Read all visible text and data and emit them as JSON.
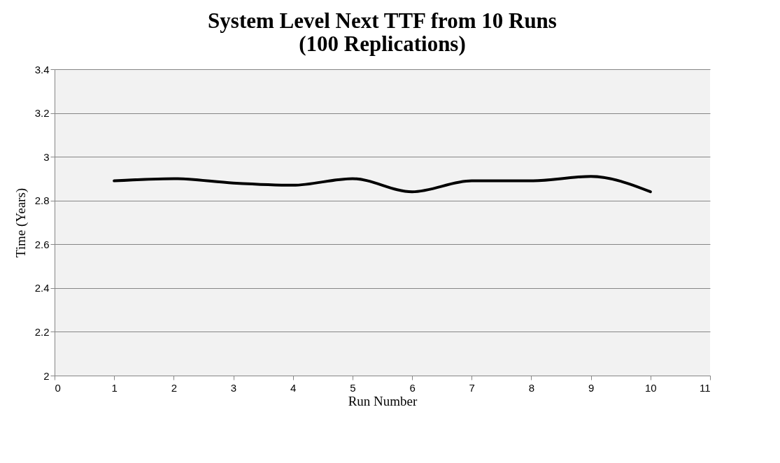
{
  "chart_data": {
    "type": "line",
    "title": [
      "System Level Next TTF from 10 Runs",
      "(100 Replications)"
    ],
    "xlabel": "Run Number",
    "ylabel": "Time (Years)",
    "x": [
      1,
      2,
      3,
      4,
      5,
      6,
      7,
      8,
      9,
      10
    ],
    "series": [
      {
        "color": "#000000",
        "values": [
          2.89,
          2.9,
          2.88,
          2.87,
          2.9,
          2.84,
          2.89,
          2.89,
          2.91,
          2.84
        ]
      }
    ],
    "xlim": [
      0,
      11
    ],
    "xticks": [
      0,
      1,
      2,
      3,
      4,
      5,
      6,
      7,
      8,
      9,
      10,
      11
    ],
    "ylim": [
      2,
      3.4
    ],
    "yticks": [
      2,
      2.2,
      2.4,
      2.6,
      2.8,
      3,
      3.2,
      3.4
    ],
    "grid": "y",
    "legend": false,
    "marker": "none",
    "line_style": "solid"
  }
}
